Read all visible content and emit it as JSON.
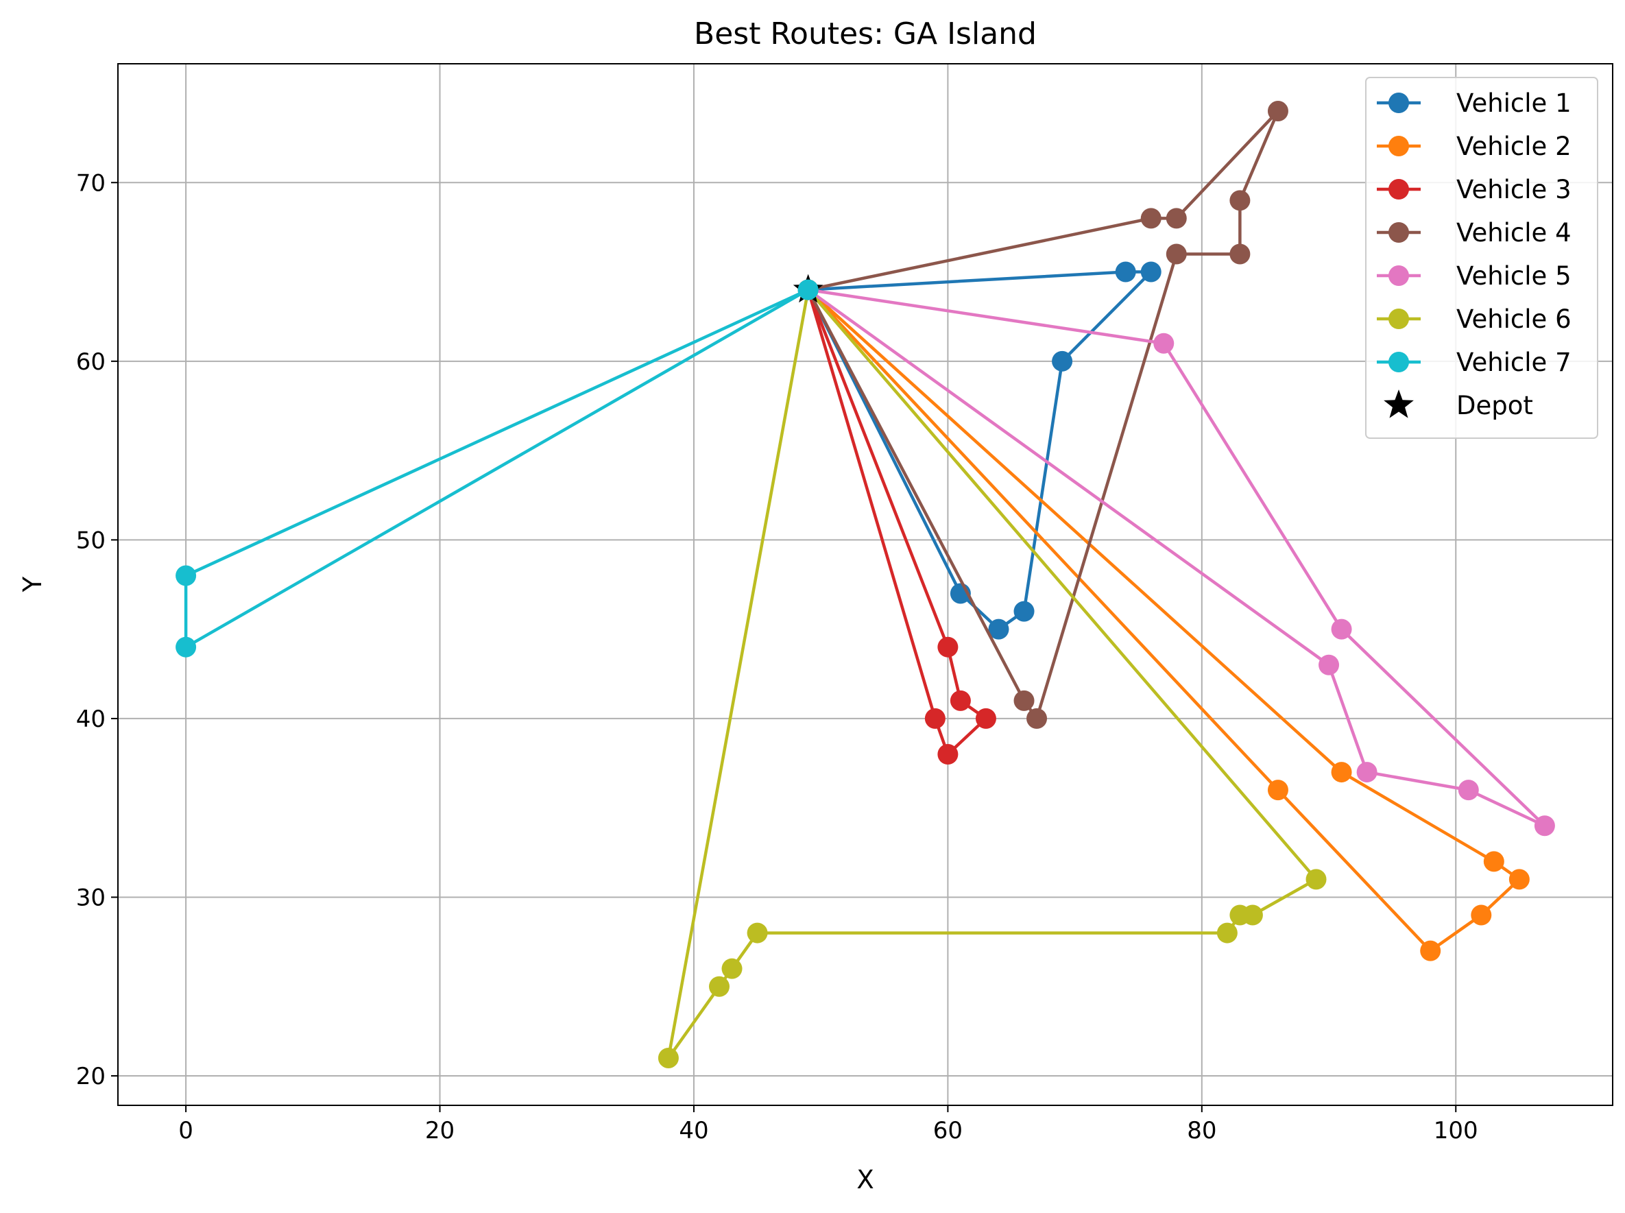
{
  "chart_data": {
    "type": "line",
    "title": "Best Routes: GA Island",
    "xlabel": "X",
    "ylabel": "Y",
    "xlim": [
      -5.35,
      112.35
    ],
    "ylim": [
      18.35,
      76.65
    ],
    "xticks": [
      0,
      20,
      40,
      60,
      80,
      100
    ],
    "yticks": [
      20,
      30,
      40,
      50,
      60,
      70
    ],
    "grid": true,
    "legend_position": "top-right",
    "depot": {
      "name": "Depot",
      "x": 49,
      "y": 64,
      "color": "#000000",
      "marker": "star"
    },
    "series": [
      {
        "name": "Vehicle 1",
        "color": "#1f77b4",
        "points": [
          [
            49,
            64
          ],
          [
            61,
            47
          ],
          [
            64,
            45
          ],
          [
            66,
            46
          ],
          [
            69,
            60
          ],
          [
            76,
            65
          ],
          [
            74,
            65
          ],
          [
            49,
            64
          ]
        ]
      },
      {
        "name": "Vehicle 2",
        "color": "#ff7f0e",
        "points": [
          [
            49,
            64
          ],
          [
            86,
            36
          ],
          [
            98,
            27
          ],
          [
            102,
            29
          ],
          [
            105,
            31
          ],
          [
            103,
            32
          ],
          [
            91,
            37
          ],
          [
            49,
            64
          ]
        ]
      },
      {
        "name": "Vehicle 3",
        "color": "#d62728",
        "points": [
          [
            49,
            64
          ],
          [
            59,
            40
          ],
          [
            60,
            38
          ],
          [
            63,
            40
          ],
          [
            61,
            41
          ],
          [
            60,
            44
          ],
          [
            49,
            64
          ]
        ]
      },
      {
        "name": "Vehicle 4",
        "color": "#8c564b",
        "points": [
          [
            49,
            64
          ],
          [
            66,
            41
          ],
          [
            67,
            40
          ],
          [
            78,
            66
          ],
          [
            83,
            66
          ],
          [
            83,
            69
          ],
          [
            86,
            74
          ],
          [
            78,
            68
          ],
          [
            76,
            68
          ],
          [
            49,
            64
          ]
        ]
      },
      {
        "name": "Vehicle 5",
        "color": "#e377c2",
        "points": [
          [
            49,
            64
          ],
          [
            90,
            43
          ],
          [
            93,
            37
          ],
          [
            101,
            36
          ],
          [
            107,
            34
          ],
          [
            91,
            45
          ],
          [
            77,
            61
          ],
          [
            49,
            64
          ]
        ]
      },
      {
        "name": "Vehicle 6",
        "color": "#bcbd22",
        "points": [
          [
            49,
            64
          ],
          [
            89,
            31
          ],
          [
            84,
            29
          ],
          [
            83,
            29
          ],
          [
            82,
            28
          ],
          [
            45,
            28
          ],
          [
            43,
            26
          ],
          [
            42,
            25
          ],
          [
            38,
            21
          ],
          [
            49,
            64
          ]
        ]
      },
      {
        "name": "Vehicle 7",
        "color": "#17becf",
        "points": [
          [
            49,
            64
          ],
          [
            0,
            44
          ],
          [
            0,
            48
          ],
          [
            49,
            64
          ]
        ]
      }
    ]
  }
}
